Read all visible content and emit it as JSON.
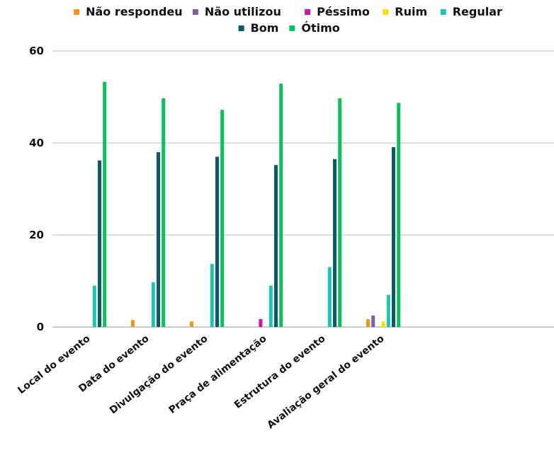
{
  "chart_data": {
    "type": "bar",
    "title": "",
    "xlabel": "",
    "ylabel": "",
    "ylim": [
      0,
      60
    ],
    "yticks": [
      0,
      20,
      40,
      60
    ],
    "grid": true,
    "legend_position": "top",
    "categories": [
      "Local do evento",
      "Data do evento",
      "Divulgação do evento",
      "Praça de alimentação",
      "Estrutura do evento",
      "Avaliação geral do evento",
      ""
    ],
    "series": [
      {
        "name": "Não respondeu",
        "color": "#f7931e",
        "values": [
          0,
          1.5,
          1.2,
          0,
          0,
          1.7,
          0
        ]
      },
      {
        "name": "Não utilizou",
        "color": "#7b5fa0",
        "values": [
          0,
          0,
          0,
          0,
          0,
          2.5,
          0
        ]
      },
      {
        "name": "Péssimo",
        "color": "#c71aa4",
        "values": [
          0,
          0,
          0,
          1.7,
          0,
          0,
          0
        ]
      },
      {
        "name": "Ruim",
        "color": "#f6e100",
        "values": [
          0,
          0,
          0,
          0,
          0,
          1.2,
          0
        ]
      },
      {
        "name": "Regular",
        "color": "#1ec5b5",
        "values": [
          9,
          9.7,
          13.7,
          9,
          13,
          7,
          0
        ]
      },
      {
        "name": "Bom",
        "color": "#0c5a66",
        "values": [
          36.2,
          38,
          37,
          35.2,
          36.5,
          39.1,
          0
        ]
      },
      {
        "name": "Ótimo",
        "color": "#0cc05a",
        "values": [
          53.3,
          49.7,
          47.2,
          52.9,
          49.7,
          48.7,
          0
        ]
      }
    ]
  }
}
